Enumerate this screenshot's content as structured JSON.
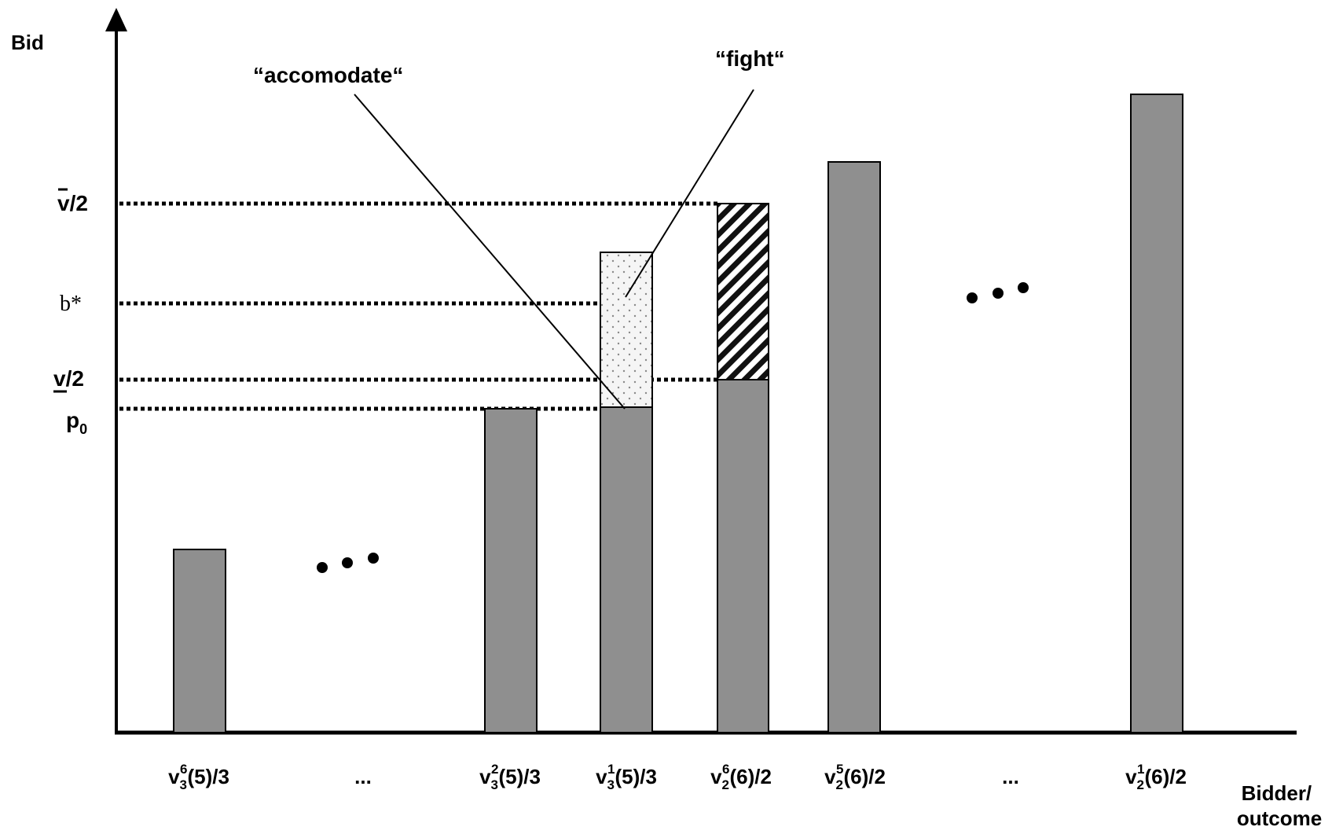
{
  "axes": {
    "y_title": "Bid",
    "x_title_line1": "Bidder/",
    "x_title_line2": "outcome"
  },
  "levels": {
    "v_bar_over_2": {
      "base": "v",
      "rest": "/2"
    },
    "b_star": "b*",
    "v_under_over_2": {
      "base": "v",
      "rest": "/2"
    },
    "p0": {
      "base": "p",
      "sub": "0"
    }
  },
  "callouts": {
    "accomodate": "“accomodate“",
    "fight": "“fight“"
  },
  "x_labels": [
    {
      "pre": "v",
      "sub": "3",
      "sup": "6",
      "post": "(5)/3"
    },
    {
      "plain": "..."
    },
    {
      "pre": "v",
      "sub": "3",
      "sup": "2",
      "post": "(5)/3"
    },
    {
      "pre": "v",
      "sub": "3",
      "sup": "1",
      "post": "(5)/3"
    },
    {
      "pre": "v",
      "sub": "2",
      "sup": "6",
      "post": "(6)/2"
    },
    {
      "pre": "v",
      "sub": "2",
      "sup": "5",
      "post": "(6)/2"
    },
    {
      "plain": "..."
    },
    {
      "pre": "v",
      "sub": "2",
      "sup": "1",
      "post": "(6)/2"
    }
  ],
  "colors": {
    "bar_fill": "#8f8f8f",
    "outline": "#000000",
    "dotted_region": "#f4f4f4"
  }
}
